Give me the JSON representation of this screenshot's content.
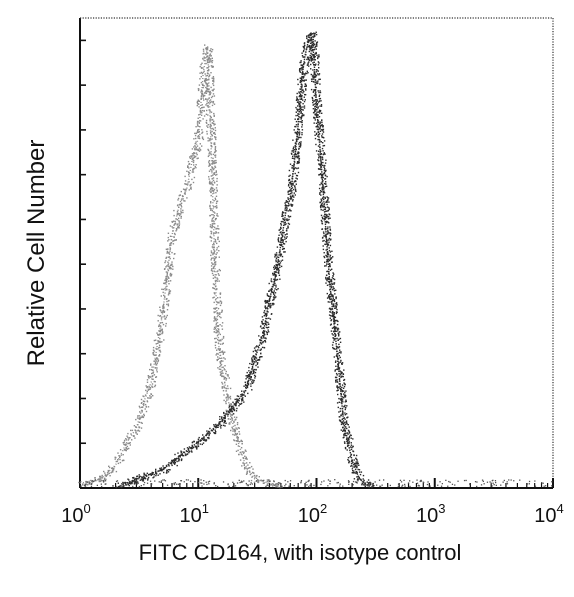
{
  "chart_data": {
    "type": "line",
    "title": "",
    "xlabel": "FITC CD164, with isotype control",
    "ylabel": "Relative Cell Number",
    "x_scale": "log",
    "xlim": [
      1,
      10000
    ],
    "ylim": [
      0,
      100
    ],
    "grid": false,
    "legend": "none",
    "x_ticks": [
      {
        "value": 1,
        "base": "10",
        "exp": "0"
      },
      {
        "value": 10,
        "base": "10",
        "exp": "1"
      },
      {
        "value": 100,
        "base": "10",
        "exp": "2"
      },
      {
        "value": 1000,
        "base": "10",
        "exp": "3"
      },
      {
        "value": 10000,
        "base": "10",
        "exp": "4"
      }
    ],
    "series": [
      {
        "style": "light-gray-dotted",
        "color": "#8a8a8a",
        "x": [
          1,
          1.5,
          2,
          2.5,
          3,
          3.5,
          4,
          4.5,
          5,
          5.5,
          6,
          7,
          8,
          9,
          10,
          11,
          12,
          13,
          14,
          15,
          17,
          20,
          25,
          30,
          40,
          50
        ],
        "y": [
          1,
          2,
          5,
          10,
          13,
          19,
          23,
          31,
          38,
          47,
          55,
          62,
          65,
          72,
          76,
          90,
          96,
          70,
          44,
          30,
          22,
          13,
          5,
          2,
          1,
          0
        ]
      },
      {
        "style": "dark-dotted",
        "color": "#2a2a2a",
        "x": [
          2,
          3,
          5,
          7,
          10,
          15,
          20,
          25,
          30,
          35,
          40,
          45,
          50,
          55,
          60,
          65,
          70,
          75,
          80,
          85,
          90,
          95,
          100,
          110,
          120,
          130,
          150,
          170,
          200,
          230,
          260,
          300
        ],
        "y": [
          0,
          2,
          4,
          7,
          10,
          14,
          18,
          21,
          28,
          33,
          41,
          46,
          53,
          60,
          63,
          71,
          79,
          89,
          94,
          97,
          99,
          94,
          83,
          70,
          56,
          44,
          29,
          14,
          6,
          2,
          1,
          0
        ]
      }
    ]
  }
}
